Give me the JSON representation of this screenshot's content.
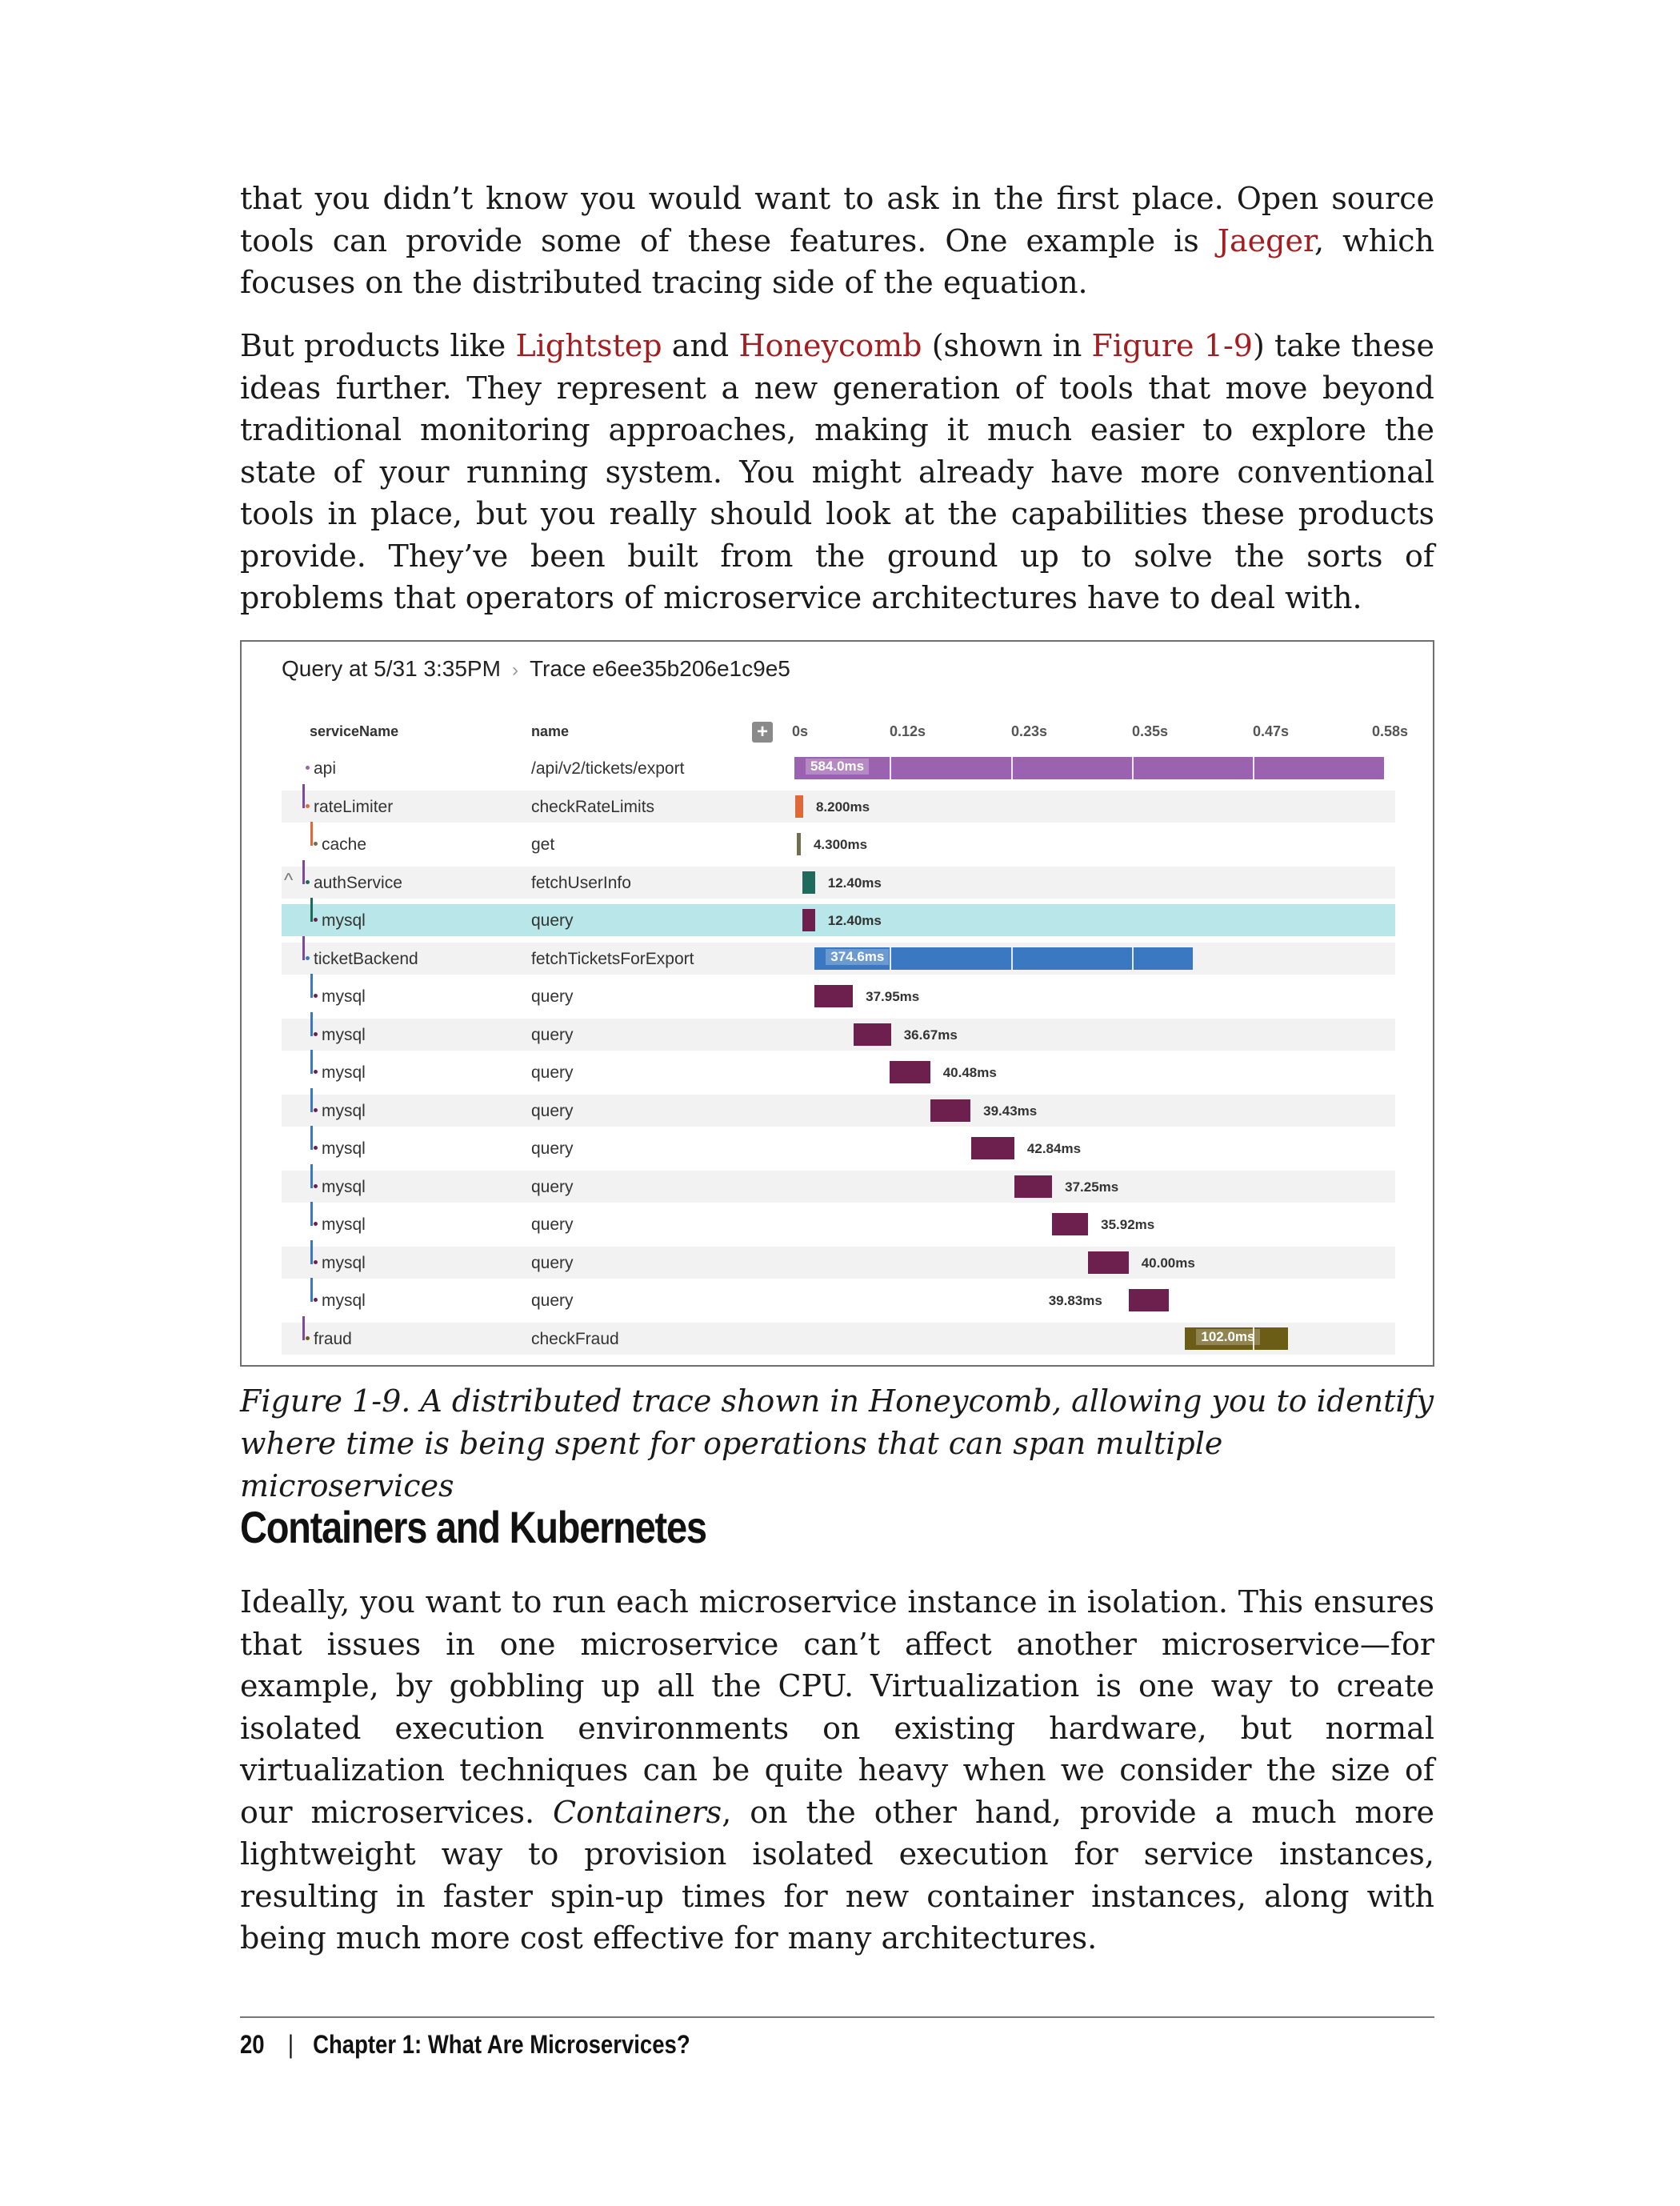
{
  "body": {
    "para1": {
      "t1": "that you didn’t know you would want to ask in the first place. Open source tools can provide some of these features. One example is ",
      "link_jaeger": "Jaeger",
      "t2": ", which focuses on the distributed tracing side of the equation."
    },
    "para2": {
      "t1": "But products like ",
      "link_lightstep": "Lightstep",
      "t2": " and ",
      "link_honeycomb": "Honeycomb",
      "t3": " (shown in ",
      "link_figure": "Figure 1-9",
      "t4": ") take these ideas further. They represent a new generation of tools that move beyond traditional monitoring approaches, making it much easier to explore the state of your running system. You might already have more conventional tools in place, but you really should look at the capabilities these products provide. They’ve been built from the ground up to solve the sorts of problems that operators of microservice architectures have to deal with."
    }
  },
  "figure": {
    "breadcrumb_query": "Query at 5/31 3:35PM",
    "breadcrumb_separator": "›",
    "breadcrumb_trace": "Trace e6ee35b206e1c9e5",
    "col_service": "serviceName",
    "col_name": "name",
    "add_symbol": "+",
    "ticks": [
      "0s",
      "0.12s",
      "0.23s",
      "0.35s",
      "0.47s",
      "0.58s"
    ],
    "collapse_symbol": "^",
    "spans": [
      {
        "service": "api",
        "name": "/api/v2/tickets/export",
        "duration": "584.0ms",
        "start_ms": 0,
        "dur_ms": 584.0,
        "color": "#9b62b0"
      },
      {
        "service": "rateLimiter",
        "name": "checkRateLimits",
        "duration": "8.200ms",
        "start_ms": 0.5,
        "dur_ms": 8.2,
        "color": "#e0693a"
      },
      {
        "service": "cache",
        "name": "get",
        "duration": "4.300ms",
        "start_ms": 2.0,
        "dur_ms": 4.3,
        "color": "#6f6f50"
      },
      {
        "service": "authService",
        "name": "fetchUserInfo",
        "duration": "12.40ms",
        "start_ms": 8.0,
        "dur_ms": 12.4,
        "color": "#1e6b5c"
      },
      {
        "service": "mysql",
        "name": "query",
        "duration": "12.40ms",
        "start_ms": 8.0,
        "dur_ms": 12.4,
        "color": "#6d1f4d"
      },
      {
        "service": "ticketBackend",
        "name": "fetchTicketsForExport",
        "duration": "374.6ms",
        "start_ms": 20.0,
        "dur_ms": 374.6,
        "color": "#3a78c2"
      },
      {
        "service": "mysql",
        "name": "query",
        "duration": "37.95ms",
        "start_ms": 20.0,
        "dur_ms": 37.95,
        "color": "#6d1f4d"
      },
      {
        "service": "mysql",
        "name": "query",
        "duration": "36.67ms",
        "start_ms": 59.0,
        "dur_ms": 36.67,
        "color": "#6d1f4d"
      },
      {
        "service": "mysql",
        "name": "query",
        "duration": "40.48ms",
        "start_ms": 94.0,
        "dur_ms": 40.48,
        "color": "#6d1f4d"
      },
      {
        "service": "mysql",
        "name": "query",
        "duration": "39.43ms",
        "start_ms": 135.0,
        "dur_ms": 39.43,
        "color": "#6d1f4d"
      },
      {
        "service": "mysql",
        "name": "query",
        "duration": "42.84ms",
        "start_ms": 175.0,
        "dur_ms": 42.84,
        "color": "#6d1f4d"
      },
      {
        "service": "mysql",
        "name": "query",
        "duration": "37.25ms",
        "start_ms": 218.0,
        "dur_ms": 37.25,
        "color": "#6d1f4d"
      },
      {
        "service": "mysql",
        "name": "query",
        "duration": "35.92ms",
        "start_ms": 255.0,
        "dur_ms": 35.92,
        "color": "#6d1f4d"
      },
      {
        "service": "mysql",
        "name": "query",
        "duration": "40.00ms",
        "start_ms": 291.0,
        "dur_ms": 40.0,
        "color": "#6d1f4d"
      },
      {
        "service": "mysql",
        "name": "query",
        "duration": "39.83ms",
        "start_ms": 331.0,
        "dur_ms": 39.83,
        "color": "#6d1f4d"
      },
      {
        "service": "fraud",
        "name": "checkFraud",
        "duration": "102.0ms",
        "start_ms": 387.0,
        "dur_ms": 102.0,
        "color": "#6b5c16"
      }
    ]
  },
  "caption": {
    "text": "Figure 1-9. A distributed trace shown in Honeycomb, allowing you to identify where time is being spent for operations that can span multiple microservices"
  },
  "section": {
    "heading": "Containers and Kubernetes",
    "t1": "Ideally, you want to run each microservice instance in isolation. This ensures that issues in one microservice can’t affect another microservice—for example, by gobbling up all the CPU. Virtualization is one way to create isolated execution environments on existing hardware, but normal virtualization techniques can be quite heavy when we consider the size of our microservices. ",
    "em": "Containers",
    "t2": ", on the other hand, provide a much more lightweight way to provision isolated execution for service instances, resulting in faster spin-up times for new container instances, along with being much more cost effective for many architectures."
  },
  "footer": {
    "page_number": "20",
    "separator": "|",
    "chapter": "Chapter 1: What Are Microservices?"
  }
}
